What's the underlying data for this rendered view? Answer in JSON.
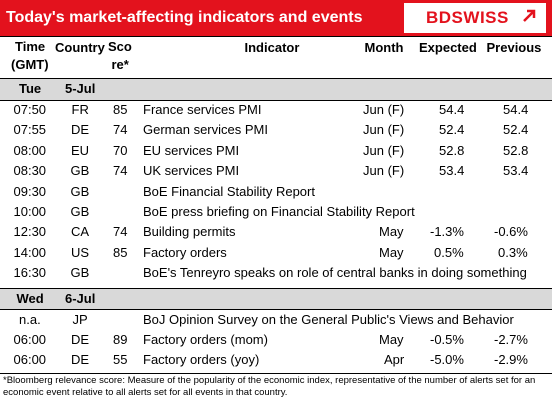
{
  "header": {
    "title": "Today's market-affecting indicators and events",
    "logo": "BDSWISS"
  },
  "table": {
    "columns": [
      [
        "Time",
        "(GMT)"
      ],
      [
        "Country"
      ],
      [
        "Sco",
        "re*"
      ],
      [
        "Indicator"
      ],
      [
        "Month"
      ],
      [
        "Expected"
      ],
      [
        "Previous"
      ]
    ],
    "groups": [
      {
        "day": "Tue",
        "date": "5-Jul",
        "rows": [
          {
            "time": "07:50",
            "country": "FR",
            "score": 85,
            "indicator": "France services PMI",
            "month": "Jun (F)",
            "expected": "54.4",
            "previous": "54.4"
          },
          {
            "time": "07:55",
            "country": "DE",
            "score": 74,
            "indicator": "German services PMI",
            "month": "Jun (F)",
            "expected": "52.4",
            "previous": "52.4"
          },
          {
            "time": "08:00",
            "country": "EU",
            "score": 70,
            "indicator": "EU services PMI",
            "month": "Jun (F)",
            "expected": "52.8",
            "previous": "52.8"
          },
          {
            "time": "08:30",
            "country": "GB",
            "score": 74,
            "indicator": "UK services PMI",
            "month": "Jun (F)",
            "expected": "53.4",
            "previous": "53.4"
          },
          {
            "time": "09:30",
            "country": "GB",
            "indicator": "BoE Financial Stability Report"
          },
          {
            "time": "10:00",
            "country": "GB",
            "indicator": "BoE press briefing on Financial Stability Report"
          },
          {
            "time": "12:30",
            "country": "CA",
            "score": 74,
            "indicator": "Building permits",
            "month": "May",
            "expected": "-1.3%",
            "previous": "-0.6%"
          },
          {
            "time": "14:00",
            "country": "US",
            "score": 85,
            "indicator": "Factory orders",
            "month": "May",
            "expected": "0.5%",
            "previous": "0.3%"
          },
          {
            "time": "16:30",
            "country": "GB",
            "indicator": "BoE's Tenreyro speaks on role of central banks in doing something"
          }
        ]
      },
      {
        "day": "Wed",
        "date": "6-Jul",
        "rows": [
          {
            "time": "n.a.",
            "country": "JP",
            "indicator": "BoJ Opinion Survey on the General Public's Views and Behavior"
          },
          {
            "time": "06:00",
            "country": "DE",
            "score": 89,
            "indicator": "Factory orders (mom)",
            "month": "May",
            "expected": "-0.5%",
            "previous": "-2.7%"
          },
          {
            "time": "06:00",
            "country": "DE",
            "score": 55,
            "indicator": "Factory orders (yoy)",
            "month": "Apr",
            "expected": "-5.0%",
            "previous": "-2.9%"
          }
        ]
      }
    ]
  },
  "footnote": "*Bloomberg relevance score:  Measure of the popularity of the economic index, representative of the number of alerts set for an economic event relative to all alerts set for all events in that country."
}
